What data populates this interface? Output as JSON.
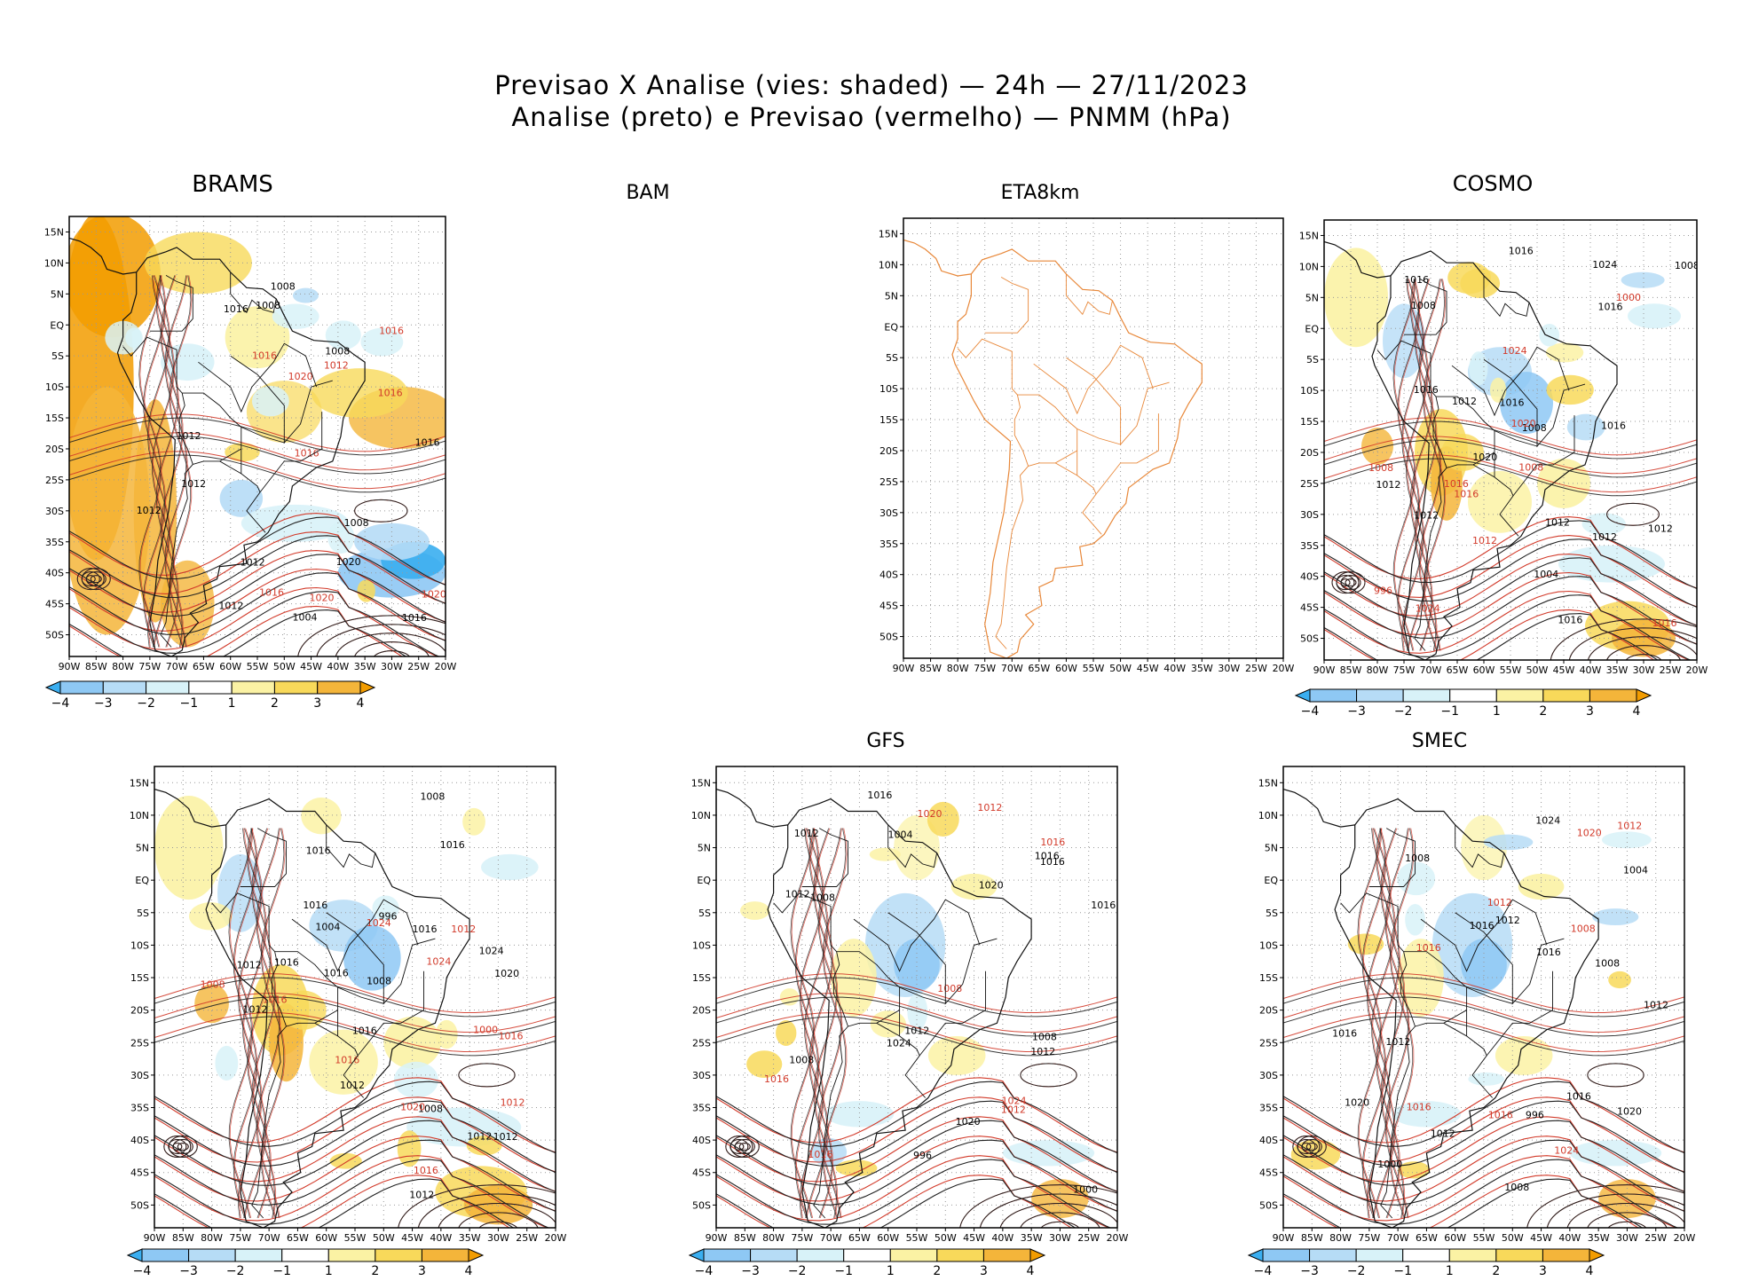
{
  "figure": {
    "title_line1": "Previsao X Analise (vies: shaded) — 24h — 27/11/2023",
    "title_line2": "Analise (preto) e Previsao (vermelho) — PNMM (hPa)"
  },
  "axes": {
    "lat_labels": [
      "15N",
      "10N",
      "5N",
      "EQ",
      "5S",
      "10S",
      "15S",
      "20S",
      "25S",
      "30S",
      "35S",
      "40S",
      "45S",
      "50S"
    ],
    "lon_labels": [
      "90W",
      "85W",
      "80W",
      "75W",
      "70W",
      "65W",
      "60W",
      "55W",
      "50W",
      "45W",
      "40W",
      "35W",
      "30W",
      "25W",
      "20W"
    ]
  },
  "colorbar": {
    "ticks": [
      "−4",
      "−3",
      "−2",
      "−1",
      "1",
      "2",
      "3",
      "4"
    ],
    "colors": [
      "#3aaef0",
      "#8ec8f4",
      "#b6dcf6",
      "#d8f2f8",
      "#ffffff",
      "#fbf2a4",
      "#f8d95a",
      "#f4b53a",
      "#f29c00"
    ]
  },
  "panels": [
    {
      "id": "brams",
      "title": "BRAMS",
      "has_data": true,
      "style": "warm",
      "labels": {
        "black": [
          "1008",
          "1012",
          "1012",
          "1008",
          "1012",
          "1008",
          "1016",
          "1020",
          "1016",
          "1012",
          "1008",
          "1004",
          "1012",
          "1016"
        ],
        "red": [
          "1012",
          "1016",
          "1016",
          "1020",
          "1016",
          "1020",
          "1016",
          "1020",
          "1016"
        ]
      }
    },
    {
      "id": "bam",
      "title": "BAM",
      "has_data": false
    },
    {
      "id": "eta8km",
      "title": "ETA8km",
      "has_data": false,
      "outline_only": true
    },
    {
      "id": "cosmo",
      "title": "COSMO",
      "has_data": true,
      "style": "mixed",
      "labels": {
        "black": [
          "1008",
          "1012",
          "1012",
          "1008",
          "1016",
          "1012",
          "1016",
          "1012",
          "1016",
          "1020",
          "1016",
          "1012",
          "1008",
          "1016",
          "1024",
          "1016",
          "1012",
          "1004",
          "1016"
        ],
        "red": [
          "1008",
          "1012",
          "1016",
          "1016",
          "1020",
          "1024",
          "1024",
          "1016",
          "1008",
          "1000",
          "996"
        ]
      }
    },
    {
      "id": "blank_left",
      "title": "",
      "has_data": true,
      "style": "mixed",
      "labels": {
        "black": [
          "1012",
          "1016",
          "1008",
          "1016",
          "1012",
          "1016",
          "1012",
          "1016",
          "1008",
          "1012",
          "1024",
          "1020",
          "1016",
          "1012",
          "1008",
          "1004",
          "996",
          "1016",
          "1012",
          "1016"
        ],
        "red": [
          "1016",
          "1012",
          "1016",
          "1020",
          "1024",
          "1024",
          "1016",
          "1012",
          "1000",
          "1016",
          "1008"
        ]
      }
    },
    {
      "id": "gfs",
      "title": "GFS",
      "has_data": true,
      "style": "cool",
      "labels": {
        "black": [
          "1008",
          "1012",
          "1008",
          "1016",
          "1012",
          "1016",
          "1020",
          "1008",
          "1024",
          "1020",
          "1016",
          "1012",
          "1004",
          "1000",
          "996",
          "1012",
          "1016"
        ],
        "red": [
          "1012",
          "1016",
          "1020",
          "1024",
          "1016",
          "1012",
          "1016",
          "1008"
        ]
      }
    },
    {
      "id": "smec",
      "title": "SMEC",
      "has_data": true,
      "style": "cool",
      "labels": {
        "black": [
          "1008",
          "1012",
          "1016",
          "1012",
          "1016",
          "1020",
          "1008",
          "1024",
          "1020",
          "1016",
          "1012",
          "1004",
          "1000",
          "996",
          "1016",
          "1012",
          "1008"
        ],
        "red": [
          "1012",
          "1016",
          "1020",
          "1024",
          "1016",
          "1012",
          "1016",
          "1008"
        ]
      }
    }
  ]
}
